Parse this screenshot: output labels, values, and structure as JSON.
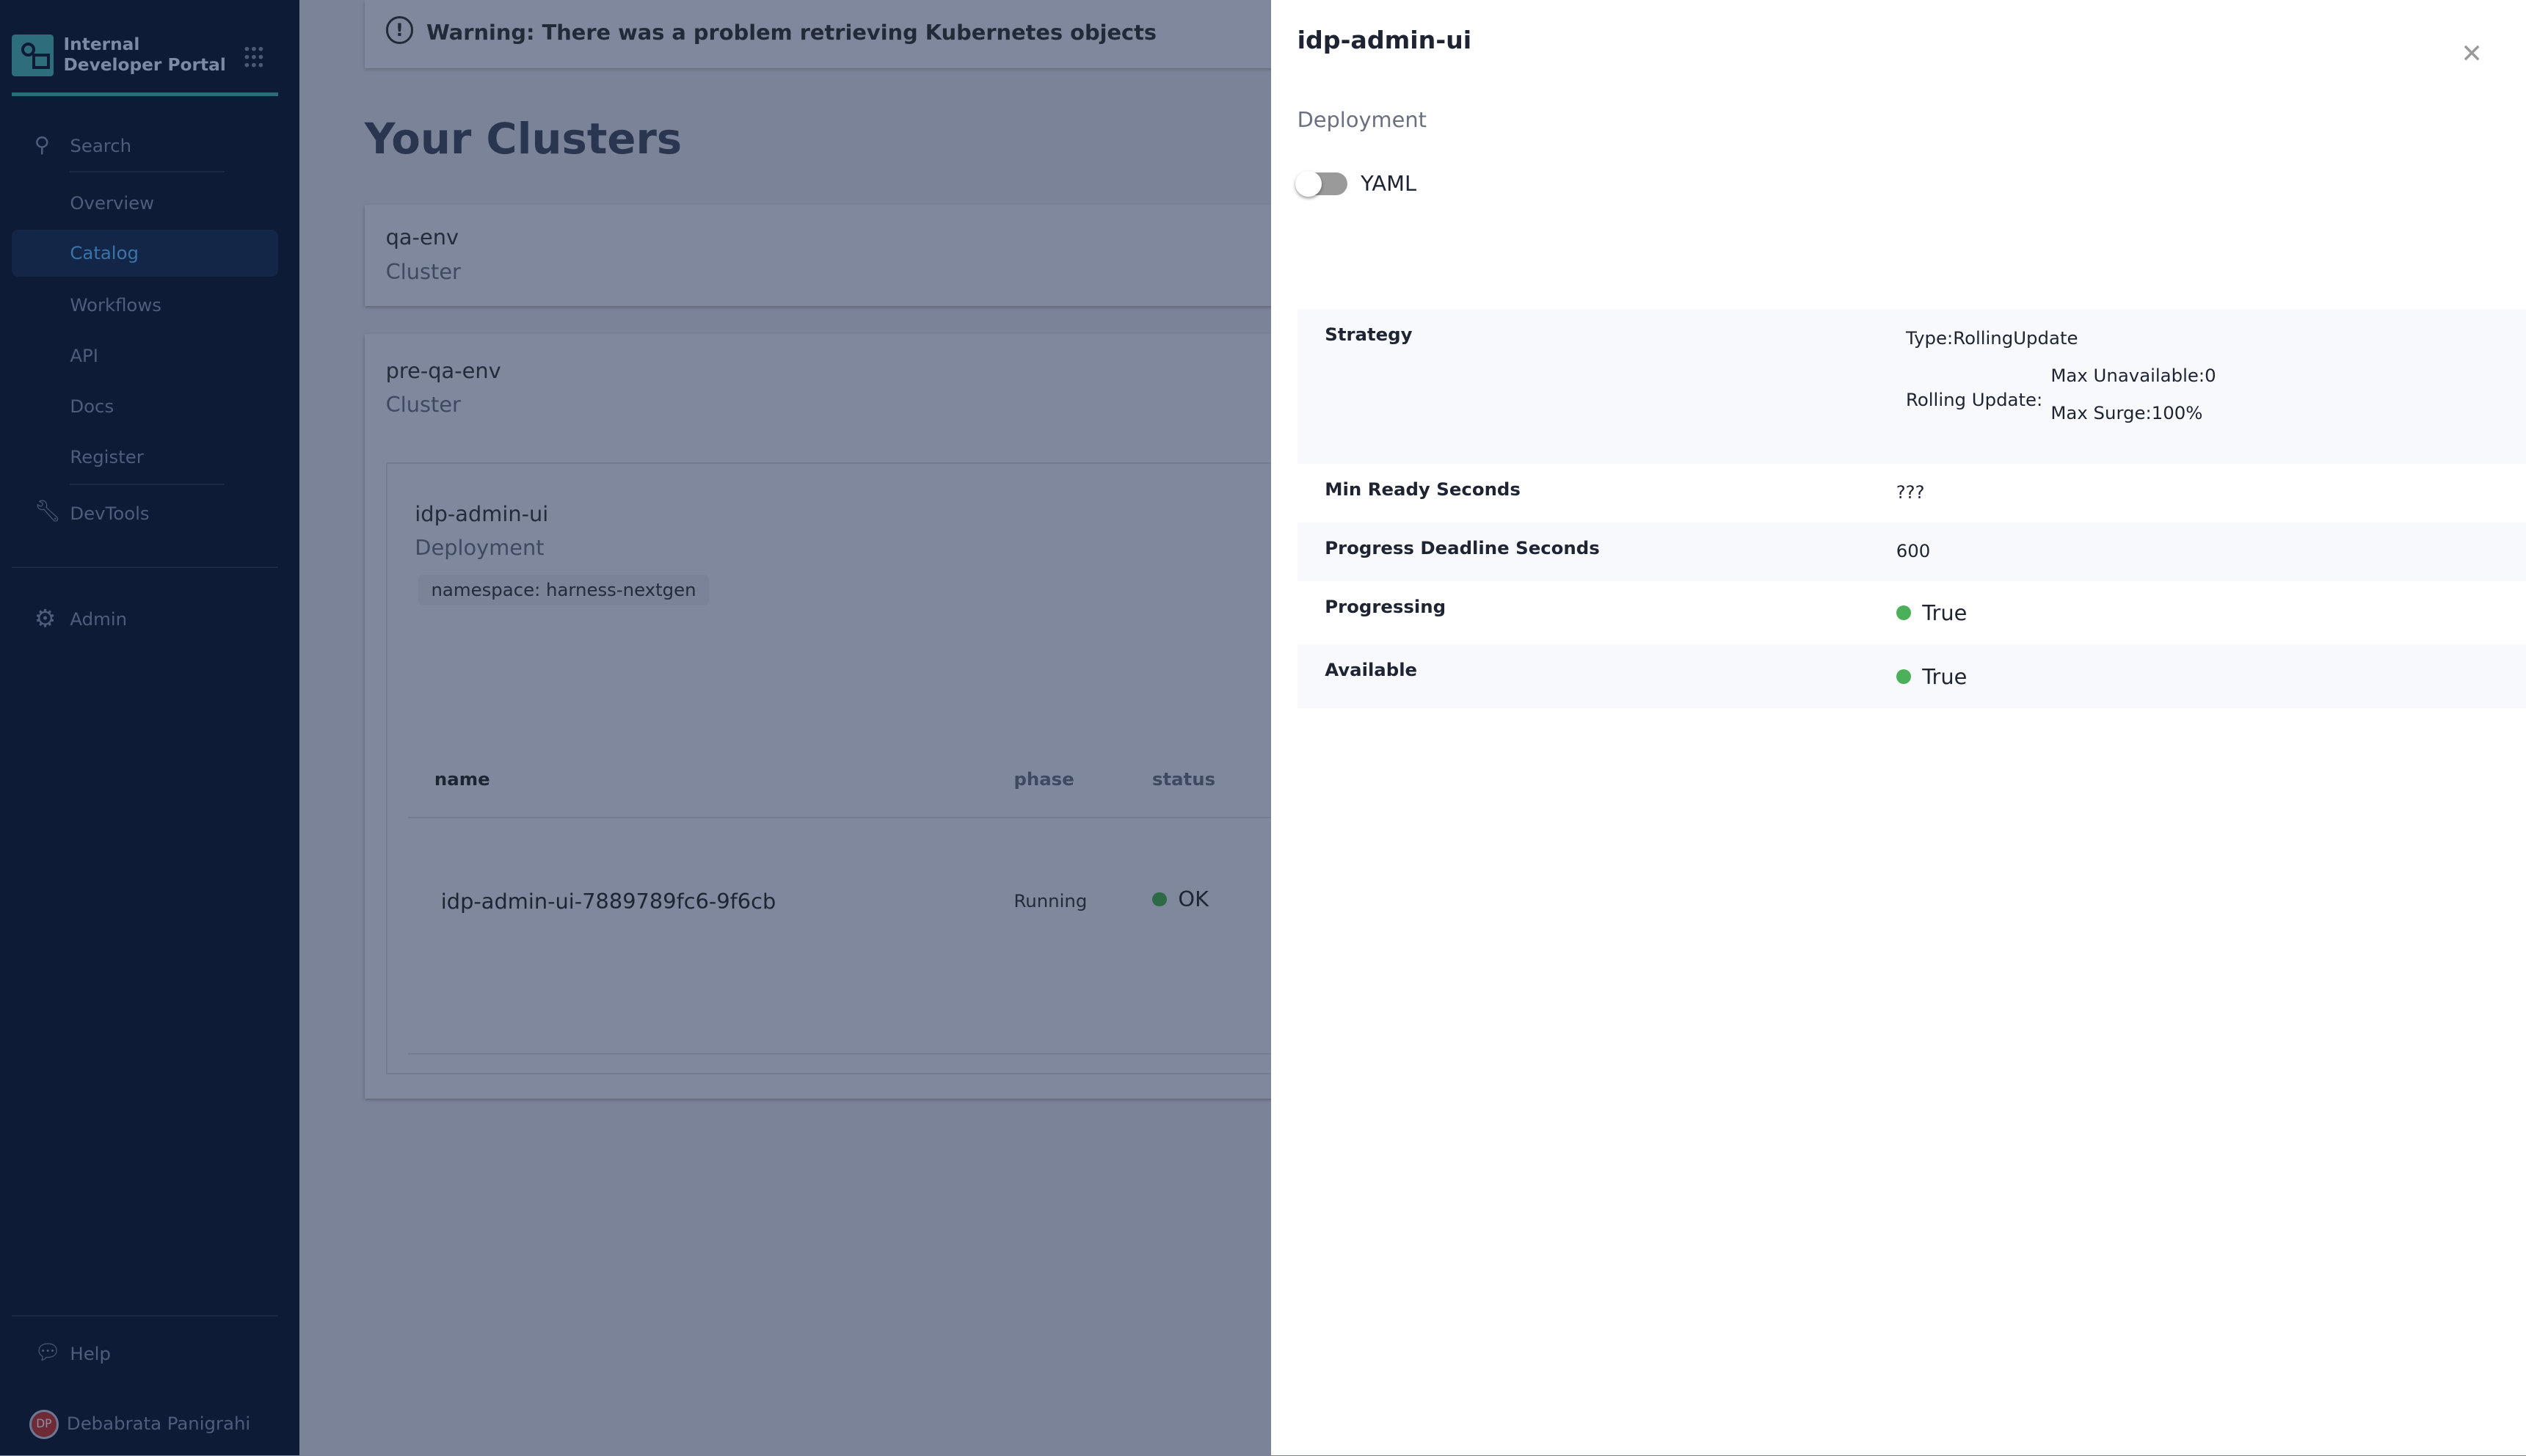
{
  "sidebar": {
    "brand": "Internal Developer Portal",
    "items": [
      {
        "label": "Search",
        "icon": "search-icon"
      },
      {
        "label": "Overview"
      },
      {
        "label": "Catalog",
        "active": true
      },
      {
        "label": "Workflows"
      },
      {
        "label": "API"
      },
      {
        "label": "Docs"
      },
      {
        "label": "Register"
      },
      {
        "label": "DevTools",
        "icon": "wrench-icon"
      },
      {
        "label": "Admin",
        "icon": "gear-icon"
      },
      {
        "label": "Help",
        "icon": "help-icon"
      }
    ],
    "user": {
      "initials": "DP",
      "name": "Debabrata Panigrahi"
    }
  },
  "main": {
    "warning": "Warning: There was a problem retrieving Kubernetes objects",
    "title": "Your Clusters",
    "clusters": [
      {
        "name": "qa-env",
        "kind": "Cluster"
      },
      {
        "name": "pre-qa-env",
        "kind": "Cluster"
      }
    ],
    "deployment": {
      "name": "idp-admin-ui",
      "kind": "Deployment",
      "namespace": "namespace: harness-nextgen",
      "columns": [
        "name",
        "phase",
        "status"
      ],
      "pods": [
        {
          "name": "idp-admin-ui-7889789fc6-9f6cb",
          "phase": "Running",
          "status": "OK"
        }
      ]
    }
  },
  "drawer": {
    "title": "idp-admin-ui",
    "kind": "Deployment",
    "toggle_label": "YAML",
    "toggle_on": false,
    "rows": [
      {
        "key": "Strategy",
        "type": "Type:RollingUpdate",
        "rolling_label": "Rolling Update:",
        "max_unavailable": "Max Unavailable:0",
        "max_surge": "Max Surge:100%"
      },
      {
        "key": "Min Ready Seconds",
        "value": "???"
      },
      {
        "key": "Progress Deadline Seconds",
        "value": "600"
      },
      {
        "key": "Progressing",
        "value": "True"
      },
      {
        "key": "Available",
        "value": "True"
      }
    ]
  },
  "colors": {
    "status_ok": "#4cb05a",
    "sidebar": "#0e1b36"
  }
}
